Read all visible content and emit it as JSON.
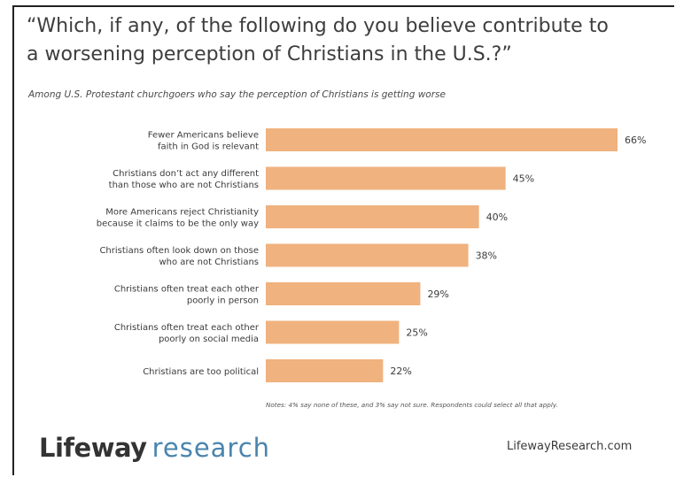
{
  "title": "“Which, if any, of the following do you believe contribute to\na worsening perception of Christians in the U.S.?”",
  "subtitle": "Among U.S. Protestant churchgoers who say the perception of Christians is getting worse",
  "note": "Notes: 4% say none of these, and 3% say not sure. Respondents could select all that apply.",
  "brand": {
    "name_part1": "Lifeway",
    "name_part2": "research",
    "website": "LifewayResearch.com",
    "colors": {
      "dark": "#333333",
      "accent": "#4a84ad"
    }
  },
  "chart_data": {
    "type": "bar",
    "orientation": "horizontal",
    "title": "“Which, if any, of the following do you believe contribute to a worsening perception of Christians in the U.S.?”",
    "subtitle": "Among U.S. Protestant churchgoers who say the perception of Christians is getting worse",
    "unit": "%",
    "bar_color": "#f0b27e",
    "categories": [
      "Fewer Americans believe\nfaith in God is relevant",
      "Christians don’t act any different\nthan those who are not Christians",
      "More Americans reject Christianity\nbecause it claims to be the only way",
      "Christians often look down on those\nwho are not Christians",
      "Christians often treat each other\npoorly in person",
      "Christians often treat each other\npoorly on social media",
      "Christians are too political"
    ],
    "values": [
      66,
      45,
      40,
      38,
      29,
      25,
      22
    ],
    "labels": [
      "66%",
      "45%",
      "40%",
      "38%",
      "29%",
      "25%",
      "22%"
    ]
  }
}
